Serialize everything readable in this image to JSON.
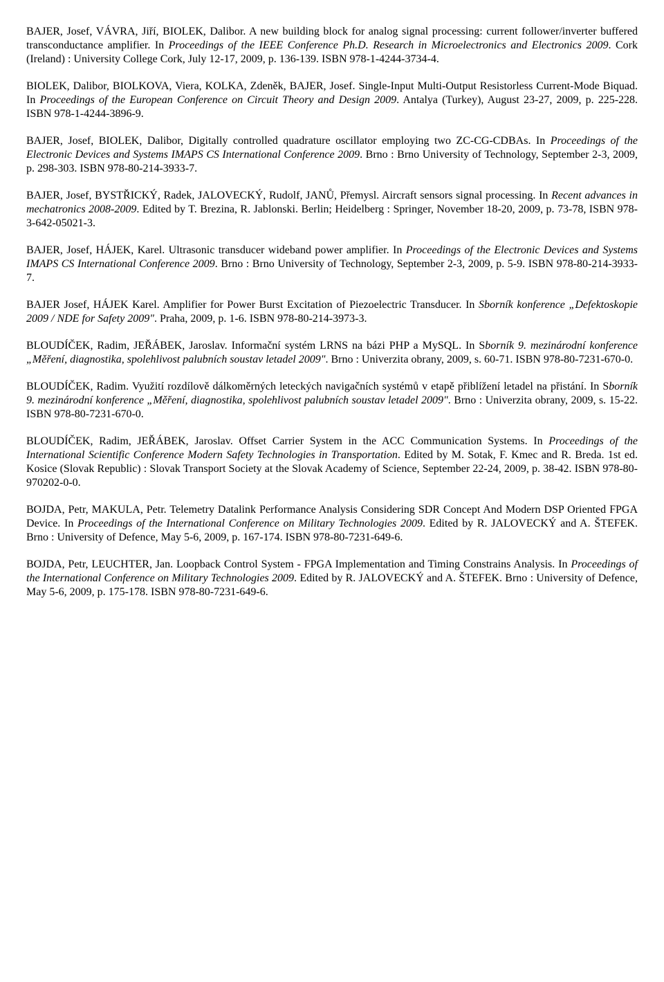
{
  "entries": [
    {
      "segments": [
        {
          "text": "BAJER, Josef, VÁVRA, Jiří, BIOLEK, Dalibor. A new building block for analog signal processing: current follower/inverter buffered transconductance amplifier. In "
        },
        {
          "text": "Proceedings of the IEEE Conference Ph.D. Research in Microelectronics and Electronics 2009",
          "italic": true
        },
        {
          "text": ". Cork (Ireland) : University College Cork, July 12-17, 2009, p. 136-139. ISBN 978-1-4244-3734-4."
        }
      ]
    },
    {
      "segments": [
        {
          "text": "BIOLEK, Dalibor, BIOLKOVA, Viera, KOLKA, Zdeněk, BAJER, Josef. Single-Input Multi-Output Resistorless Current-Mode Biquad. In "
        },
        {
          "text": "Proceedings of the European Conference on Circuit Theory and Design 2009",
          "italic": true
        },
        {
          "text": ". Antalya (Turkey), August 23-27, 2009, p. 225-228. ISBN 978-1-4244-3896-9."
        }
      ]
    },
    {
      "segments": [
        {
          "text": "BAJER, Josef, BIOLEK, Dalibor, Digitally controlled quadrature oscillator employing two ZC-CG-CDBAs. In "
        },
        {
          "text": "Proceedings of the Electronic Devices and Systems IMAPS CS International Conference 2009",
          "italic": true
        },
        {
          "text": ". Brno : Brno University of Technology, September 2-3, 2009, p. 298-303. ISBN 978-80-214-3933-7."
        }
      ]
    },
    {
      "segments": [
        {
          "text": "BAJER, Josef, BYSTŘICKÝ, Radek, JALOVECKÝ, Rudolf, JANŮ, Přemysl. Aircraft sensors signal processing. In "
        },
        {
          "text": "Recent advances in mechatronics 2008-2009",
          "italic": true
        },
        {
          "text": ". Edited by T. Brezina, R. Jablonski. Berlin; Heidelberg : Springer, November 18-20, 2009, p. 73-78, ISBN 978-3-642-05021-3."
        }
      ]
    },
    {
      "segments": [
        {
          "text": "BAJER, Josef, HÁJEK, Karel. Ultrasonic transducer wideband power amplifier. In "
        },
        {
          "text": "Proceedings of the Electronic Devices and Systems IMAPS CS International Conference 2009",
          "italic": true
        },
        {
          "text": ". Brno : Brno University of Technology, September 2-3, 2009, p. 5-9. ISBN 978-80-214-3933-7."
        }
      ]
    },
    {
      "segments": [
        {
          "text": "BAJER Josef, HÁJEK Karel. Amplifier for Power Burst Excitation of Piezoelectric Transducer. In "
        },
        {
          "text": "Sborník konference „Defektoskopie 2009 / NDE for Safety 2009\"",
          "italic": true
        },
        {
          "text": ". Praha, 2009, p. 1-6. ISBN 978-80-214-3973-3."
        }
      ]
    },
    {
      "segments": [
        {
          "text": "BLOUDÍČEK, Radim, JEŘÁBEK, Jaroslav. Informační systém LRNS na bázi PHP a MySQL. In S"
        },
        {
          "text": "borník 9. mezinárodní konference „Měření, diagnostika, spolehlivost palubních soustav letadel 2009\"",
          "italic": true
        },
        {
          "text": ". Brno : Univerzita obrany, 2009, s. 60-71. ISBN 978-80-7231-670-0."
        }
      ]
    },
    {
      "segments": [
        {
          "text": "BLOUDÍČEK, Radim. Využití rozdílově dálkoměrných leteckých navigačních systémů v etapě přiblížení letadel na přistání. In S"
        },
        {
          "text": "borník 9. mezinárodní konference „Měření, diagnostika, spolehlivost palubních soustav letadel 2009\"",
          "italic": true
        },
        {
          "text": ". Brno : Univerzita obrany, 2009, s. 15-22. ISBN 978-80-7231-670-0."
        }
      ]
    },
    {
      "segments": [
        {
          "text": "BLOUDÍČEK, Radim, JEŘÁBEK, Jaroslav. Offset Carrier System in the ACC Communication Systems. In "
        },
        {
          "text": "Proceedings of the International Scientific Conference Modern Safety Technologies in Transportation",
          "italic": true
        },
        {
          "text": ". Edited by M. Sotak, F. Kmec and R. Breda. 1st ed. Kosice (Slovak Republic) : Slovak Transport Society at the Slovak Academy of Science, September 22-24, 2009, p. 38-42. ISBN 978-80-970202-0-0."
        }
      ]
    },
    {
      "segments": [
        {
          "text": "BOJDA, Petr, MAKULA, Petr. Telemetry Datalink Performance Analysis Considering SDR Concept And Modern DSP Oriented FPGA Device. In "
        },
        {
          "text": "Proceedings of the International Conference on Military Technologies 2009",
          "italic": true
        },
        {
          "text": ". Edited by R. JALOVECKÝ and A. ŠTEFEK.   Brno : University of Defence, May 5-6, 2009, p. 167-174. ISBN 978-80-7231-649-6."
        }
      ]
    },
    {
      "segments": [
        {
          "text": "BOJDA, Petr, LEUCHTER, Jan. Loopback Control System - FPGA Implementation and Timing Constrains Analysis. In "
        },
        {
          "text": "Proceedings of the International Conference on Military Technologies 2009",
          "italic": true
        },
        {
          "text": ". Edited by R. JALOVECKÝ and A. ŠTEFEK. Brno : University of Defence, May 5-6, 2009, p. 175-178. ISBN 978-80-7231-649-6."
        }
      ]
    }
  ]
}
